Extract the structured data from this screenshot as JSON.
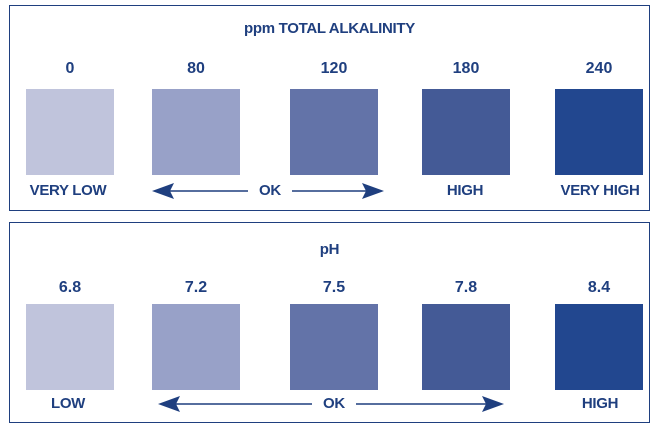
{
  "panels": [
    {
      "title": "ppm TOTAL ALKALINITY",
      "values": [
        "0",
        "80",
        "120",
        "180",
        "240"
      ],
      "swatch_colors": [
        "#c0c4dc",
        "#98a1c8",
        "#6373a8",
        "#445a96",
        "#22478f"
      ],
      "labels": {
        "left": "VERY LOW",
        "ok": "OK",
        "high": "HIGH",
        "right": "VERY HIGH"
      }
    },
    {
      "title": "pH",
      "values": [
        "6.8",
        "7.2",
        "7.5",
        "7.8",
        "8.4"
      ],
      "swatch_colors": [
        "#c0c4dc",
        "#98a1c8",
        "#6373a8",
        "#445a96",
        "#22478f"
      ],
      "labels": {
        "left": "LOW",
        "ok": "OK",
        "right": "HIGH"
      }
    }
  ],
  "colors": {
    "text": "#1f3f7f",
    "border": "#1f3f7f",
    "arrow": "#1f3f7f"
  }
}
